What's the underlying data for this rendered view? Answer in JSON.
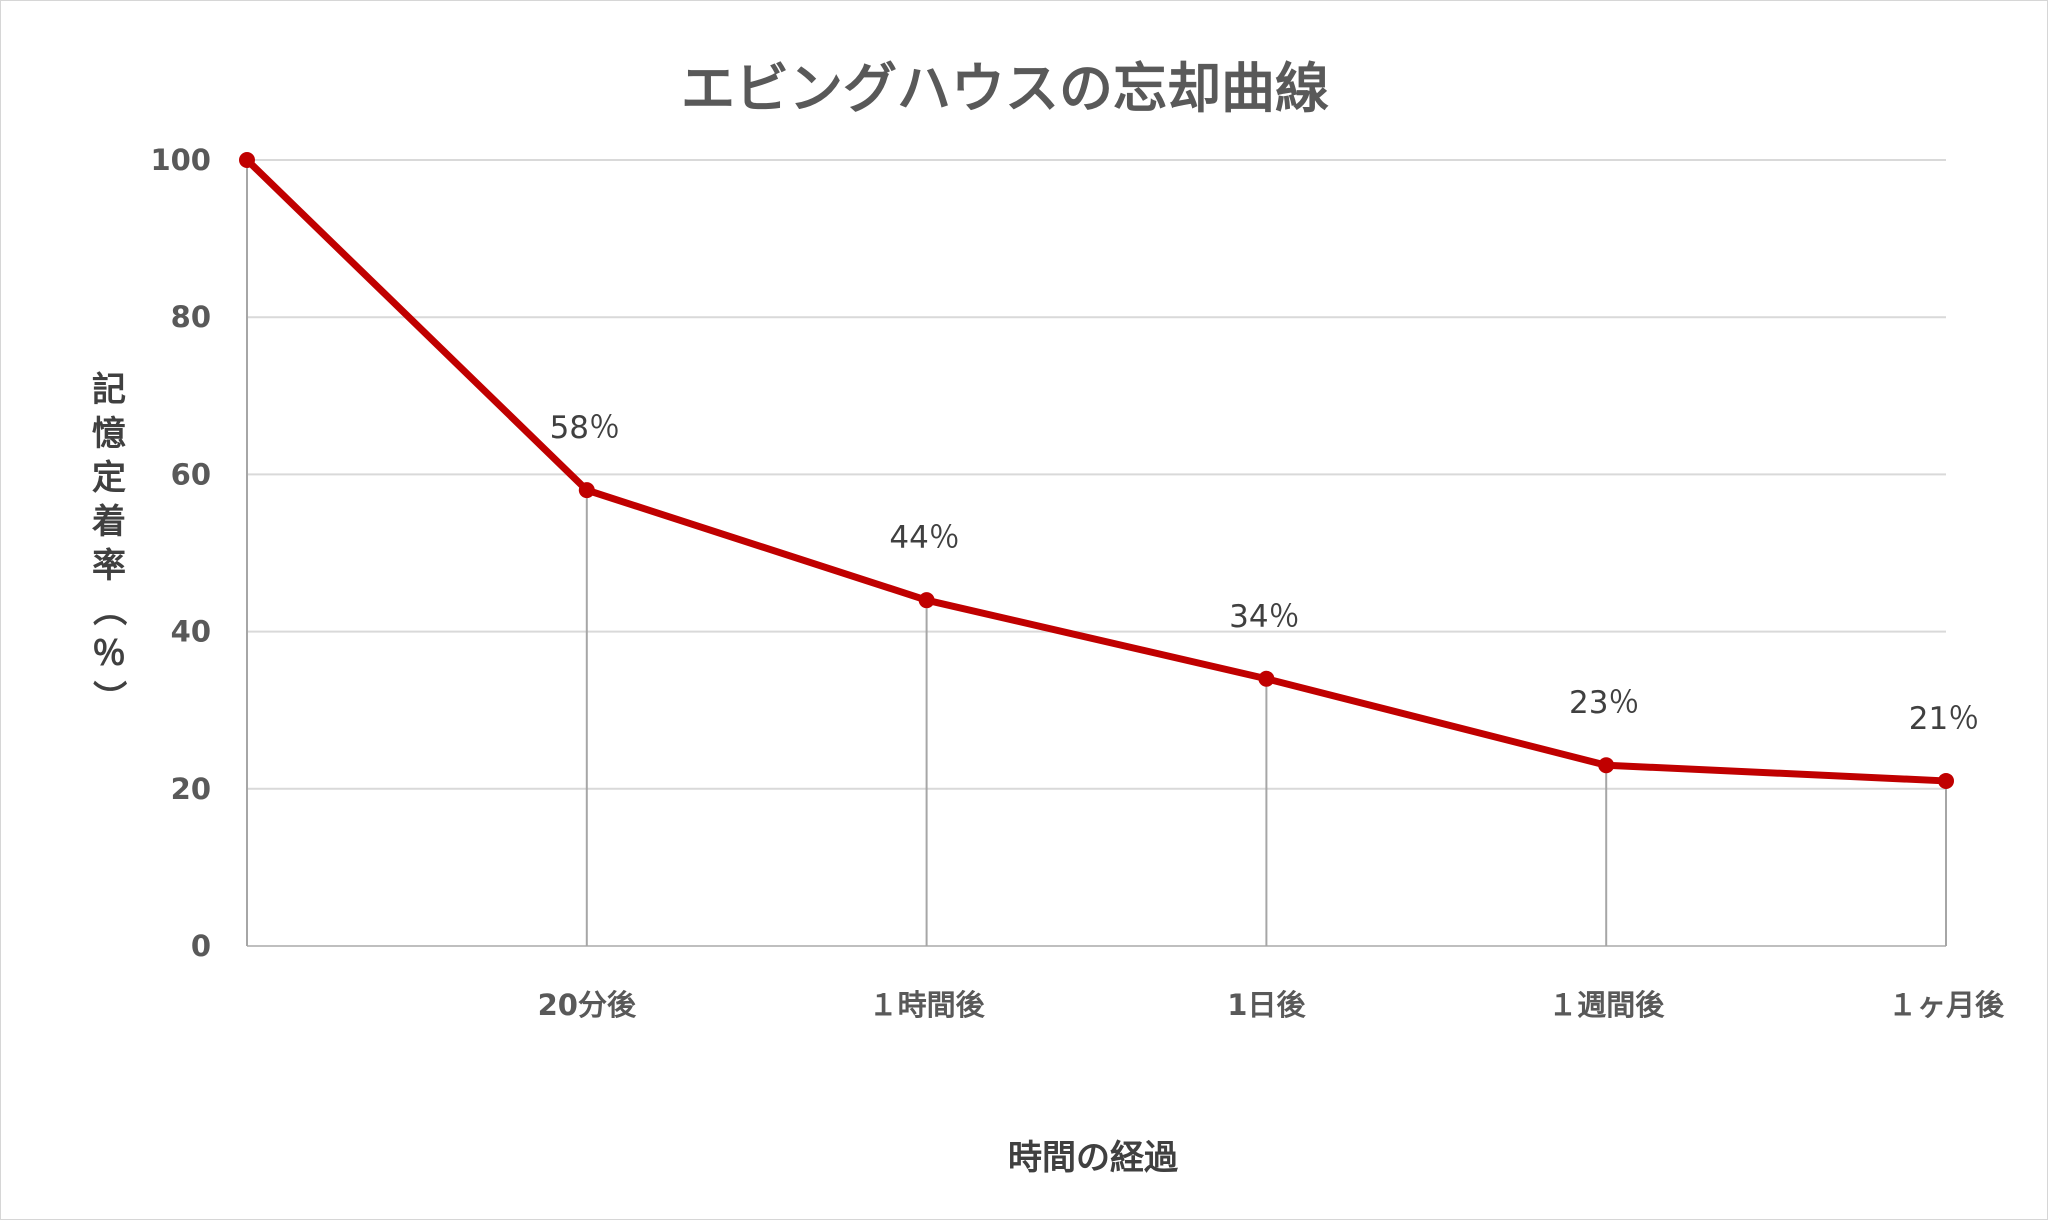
{
  "chart_data": {
    "type": "line",
    "title": "エビングハウスの忘却曲線",
    "xlabel": "時間の経過",
    "ylabel": "記憶定着率（％）",
    "categories": [
      "",
      "20分後",
      "１時間後",
      "1日後",
      "１週間後",
      "１ヶ月後"
    ],
    "series": [
      {
        "values": [
          100,
          58,
          44,
          34,
          23,
          21
        ],
        "labels": [
          "",
          "58％",
          "44％",
          "34％",
          "23％",
          "21％"
        ],
        "color": "#c00000"
      }
    ],
    "ylim": [
      0,
      100
    ],
    "yticks": [
      "0",
      "20",
      "40",
      "60",
      "80",
      "100"
    ],
    "grid": true,
    "drop_lines": true,
    "legend": "none"
  }
}
